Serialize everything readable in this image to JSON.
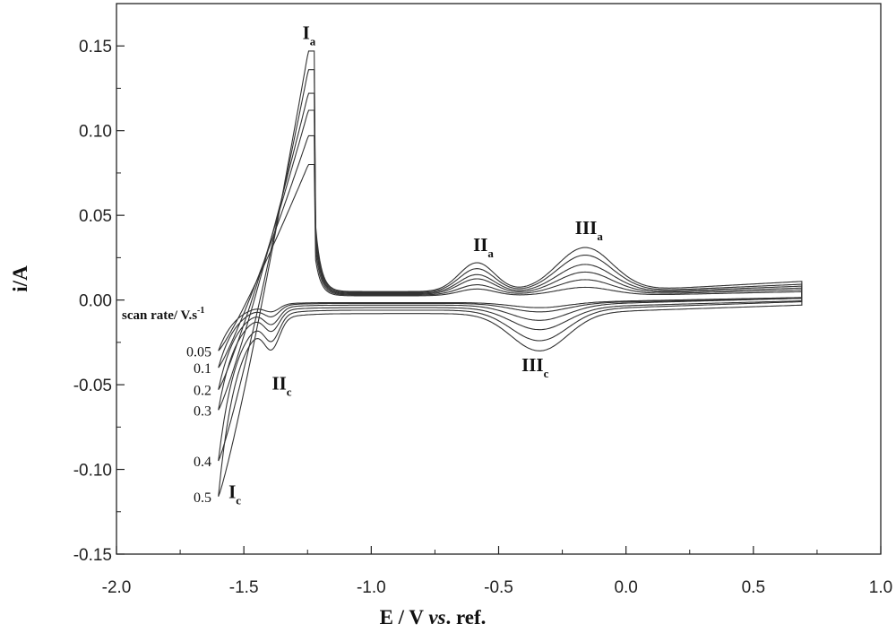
{
  "chart_data": {
    "type": "line",
    "xlabel_prefix": "E / V ",
    "xlabel_italic": "vs",
    "xlabel_suffix": ". ref.",
    "ylabel": "i/A",
    "xlim": [
      -2.0,
      1.0
    ],
    "ylim": [
      -0.15,
      0.175
    ],
    "xticks": [
      "-2.0",
      "-1.5",
      "-1.0",
      "-0.5",
      "0.0",
      "0.5",
      "1.0"
    ],
    "xtick_values": [
      -2.0,
      -1.5,
      -1.0,
      -0.5,
      0.0,
      0.5,
      1.0
    ],
    "yticks": [
      "0.15",
      "0.10",
      "0.05",
      "0.00",
      "-0.05",
      "-0.10",
      "-0.15"
    ],
    "ytick_values": [
      0.15,
      0.1,
      0.05,
      0.0,
      -0.05,
      -0.1,
      -0.15
    ],
    "grid": false,
    "legend_title": "scan rate/ V.s",
    "legend_title_sup": "-1",
    "series": [
      {
        "name": "0.05",
        "params": {
          "ia": 0.08,
          "iia": 0.004,
          "iiia": 0.005,
          "base_a": 0.0025,
          "ic": -0.03,
          "iic": -0.004,
          "iiic": -0.003,
          "base_c": -0.0015,
          "end_a": 0.004,
          "end_c": 0.003
        }
      },
      {
        "name": "0.1",
        "params": {
          "ia": 0.097,
          "iia": 0.006,
          "iiia": 0.009,
          "base_a": 0.003,
          "ic": -0.04,
          "iic": -0.006,
          "iiic": -0.005,
          "base_c": -0.002,
          "end_a": 0.005,
          "end_c": 0.003
        }
      },
      {
        "name": "0.2",
        "params": {
          "ia": 0.112,
          "iia": 0.009,
          "iiia": 0.013,
          "base_a": 0.0035,
          "ic": -0.053,
          "iic": -0.009,
          "iiic": -0.009,
          "base_c": -0.003,
          "end_a": 0.006,
          "end_c": 0.004
        }
      },
      {
        "name": "0.3",
        "params": {
          "ia": 0.122,
          "iia": 0.011,
          "iiia": 0.017,
          "base_a": 0.004,
          "ic": -0.065,
          "iic": -0.011,
          "iiic": -0.013,
          "base_c": -0.0045,
          "end_a": 0.007,
          "end_c": 0.004
        }
      },
      {
        "name": "0.4",
        "params": {
          "ia": 0.136,
          "iia": 0.014,
          "iiia": 0.022,
          "base_a": 0.0045,
          "ic": -0.095,
          "iic": -0.014,
          "iiic": -0.018,
          "base_c": -0.006,
          "end_a": 0.008,
          "end_c": 0.005
        }
      },
      {
        "name": "0.5",
        "params": {
          "ia": 0.147,
          "iia": 0.017,
          "iiia": 0.026,
          "base_a": 0.005,
          "ic": -0.116,
          "iic": -0.016,
          "iiic": -0.022,
          "base_c": -0.008,
          "end_a": 0.01,
          "end_c": 0.005
        }
      }
    ],
    "annotations": [
      {
        "main": "I",
        "sub": "a",
        "x": -1.27,
        "y": 0.154
      },
      {
        "main": "II",
        "sub": "a",
        "x": -0.6,
        "y": 0.029
      },
      {
        "main": "III",
        "sub": "a",
        "x": -0.2,
        "y": 0.039
      },
      {
        "main": "III",
        "sub": "c",
        "x": -0.41,
        "y": -0.042
      },
      {
        "main": "II",
        "sub": "c",
        "x": -1.39,
        "y": -0.053
      },
      {
        "main": "I",
        "sub": "c",
        "x": -1.56,
        "y": -0.117
      }
    ]
  }
}
